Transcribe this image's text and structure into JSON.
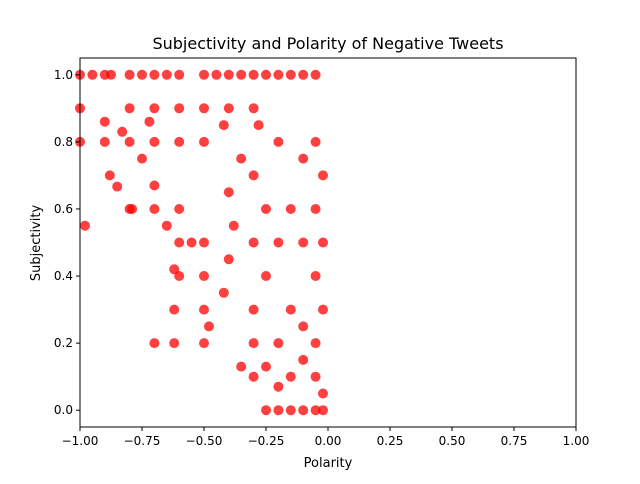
{
  "chart_data": {
    "type": "scatter",
    "title": "Subjectivity and Polarity of Negative Tweets",
    "xlabel": "Polarity",
    "ylabel": "Subjectivity",
    "xlim": [
      -1.0,
      1.0
    ],
    "ylim": [
      -0.05,
      1.05
    ],
    "xticks": [
      "−1.00",
      "−0.75",
      "−0.50",
      "−0.25",
      "0.00",
      "0.25",
      "0.50",
      "0.75",
      "1.00"
    ],
    "xtick_values": [
      -1.0,
      -0.75,
      -0.5,
      -0.25,
      0.0,
      0.25,
      0.5,
      0.75,
      1.0
    ],
    "yticks": [
      "0.0",
      "0.2",
      "0.4",
      "0.6",
      "0.8",
      "1.0"
    ],
    "ytick_values": [
      0.0,
      0.2,
      0.4,
      0.6,
      0.8,
      1.0
    ],
    "grid": false,
    "marker_color": "#ff0000",
    "series": [
      {
        "values": [
          [
            -1.0,
            1.0
          ],
          [
            -0.95,
            1.0
          ],
          [
            -0.9,
            1.0
          ],
          [
            -0.875,
            1.0
          ],
          [
            -0.8,
            1.0
          ],
          [
            -0.75,
            1.0
          ],
          [
            -0.7,
            1.0
          ],
          [
            -0.65,
            1.0
          ],
          [
            -0.6,
            1.0
          ],
          [
            -0.5,
            1.0
          ],
          [
            -0.45,
            1.0
          ],
          [
            -0.4,
            1.0
          ],
          [
            -0.35,
            1.0
          ],
          [
            -0.3,
            1.0
          ],
          [
            -0.25,
            1.0
          ],
          [
            -0.2,
            1.0
          ],
          [
            -0.15,
            1.0
          ],
          [
            -0.1,
            1.0
          ],
          [
            -0.05,
            1.0
          ],
          [
            -1.0,
            0.9
          ],
          [
            -0.8,
            0.9
          ],
          [
            -0.7,
            0.9
          ],
          [
            -0.6,
            0.9
          ],
          [
            -0.5,
            0.9
          ],
          [
            -0.4,
            0.9
          ],
          [
            -0.3,
            0.9
          ],
          [
            -1.0,
            0.8
          ],
          [
            -0.9,
            0.8
          ],
          [
            -0.8,
            0.8
          ],
          [
            -0.7,
            0.8
          ],
          [
            -0.6,
            0.8
          ],
          [
            -0.5,
            0.8
          ],
          [
            -0.88,
            0.7
          ],
          [
            -0.85,
            0.6667
          ],
          [
            -0.8,
            0.6
          ],
          [
            -0.79,
            0.6
          ],
          [
            -0.7,
            0.6
          ],
          [
            -0.6,
            0.6
          ],
          [
            -0.9,
            0.86
          ],
          [
            -0.72,
            0.86
          ],
          [
            -0.83,
            0.83
          ],
          [
            -0.75,
            0.75
          ],
          [
            -0.7,
            0.67
          ],
          [
            -0.98,
            0.55
          ],
          [
            -0.65,
            0.55
          ],
          [
            -0.6,
            0.5
          ],
          [
            -0.55,
            0.5
          ],
          [
            -0.5,
            0.5
          ],
          [
            -0.6,
            0.4
          ],
          [
            -0.62,
            0.42
          ],
          [
            -0.5,
            0.4
          ],
          [
            -0.62,
            0.3
          ],
          [
            -0.5,
            0.3
          ],
          [
            -0.7,
            0.2
          ],
          [
            -0.62,
            0.2
          ],
          [
            -0.5,
            0.2
          ],
          [
            -0.48,
            0.25
          ],
          [
            -0.35,
            0.13
          ],
          [
            -0.3,
            0.2
          ],
          [
            -0.3,
            0.1
          ],
          [
            -0.25,
            0.13
          ],
          [
            -0.25,
            0.0
          ],
          [
            -0.2,
            0.07
          ],
          [
            -0.2,
            0.0
          ],
          [
            -0.15,
            0.0
          ],
          [
            -0.1,
            0.0
          ],
          [
            -0.05,
            0.0
          ],
          [
            -0.02,
            0.0
          ],
          [
            -0.15,
            0.1
          ],
          [
            -0.1,
            0.15
          ],
          [
            -0.05,
            0.1
          ],
          [
            -0.02,
            0.05
          ],
          [
            -0.42,
            0.35
          ],
          [
            -0.4,
            0.45
          ],
          [
            -0.38,
            0.55
          ],
          [
            -0.4,
            0.65
          ],
          [
            -0.35,
            0.75
          ],
          [
            -0.42,
            0.85
          ],
          [
            -0.3,
            0.3
          ],
          [
            -0.3,
            0.5
          ],
          [
            -0.3,
            0.7
          ],
          [
            -0.28,
            0.85
          ],
          [
            -0.25,
            0.4
          ],
          [
            -0.25,
            0.6
          ],
          [
            -0.2,
            0.2
          ],
          [
            -0.2,
            0.5
          ],
          [
            -0.2,
            0.8
          ],
          [
            -0.15,
            0.3
          ],
          [
            -0.15,
            0.6
          ],
          [
            -0.1,
            0.25
          ],
          [
            -0.1,
            0.5
          ],
          [
            -0.1,
            0.75
          ],
          [
            -0.05,
            0.2
          ],
          [
            -0.05,
            0.4
          ],
          [
            -0.05,
            0.6
          ],
          [
            -0.05,
            0.8
          ],
          [
            -0.02,
            0.3
          ],
          [
            -0.02,
            0.5
          ],
          [
            -0.02,
            0.7
          ]
        ]
      }
    ]
  }
}
